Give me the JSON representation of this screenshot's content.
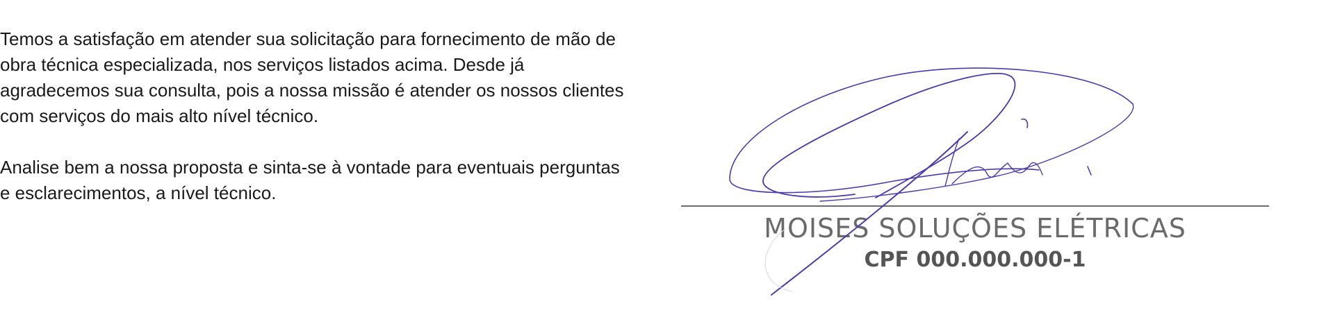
{
  "letter": {
    "paragraph_1": "Temos a satisfação em atender sua solicitação para fornecimento de mão de obra técnica especializada, nos serviços listados acima. Desde já agradecemos sua consulta, pois a nossa missão é atender os nossos clientes com serviços do mais alto nível técnico.",
    "paragraph_2": "Analise bem a nossa proposta e sinta-se à vontade para eventuais perguntas e esclarecimentos, a nível técnico."
  },
  "signature": {
    "company_name": "MOISES SOLUÇÕES ELÉTRICAS",
    "document_id": "CPF 000.000.000-1",
    "ink_color": "#4b3ba8"
  }
}
